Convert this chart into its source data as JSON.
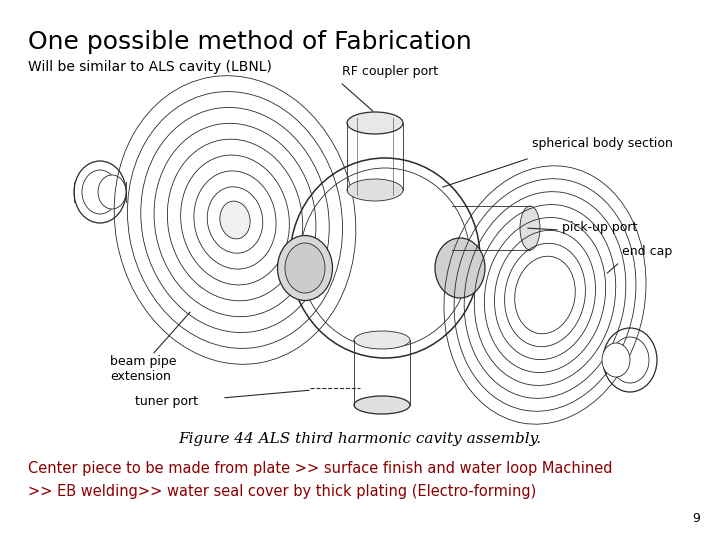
{
  "title": "One possible method of Fabrication",
  "subtitle": "Will be similar to ALS cavity (LBNL)",
  "figure_caption": "Figure 44 ALS third harmonic cavity assembly.",
  "body_text_line1": "Center piece to be made from plate >> surface finish and water loop Machined",
  "body_text_line2": ">> EB welding>> water seal cover by thick plating (Electro-forming)",
  "slide_number": "9",
  "bg_color": "#ffffff",
  "title_color": "#000000",
  "subtitle_color": "#000000",
  "caption_color": "#000000",
  "body_text_color": "#8b0000",
  "slide_number_color": "#000000",
  "title_fontsize": 18,
  "subtitle_fontsize": 10,
  "caption_fontsize": 11,
  "body_fontsize": 10.5,
  "slide_number_fontsize": 9,
  "diagram_labels": {
    "rf_coupler": "RF coupler port",
    "spherical": "spherical body section",
    "pickup": "pick-up port",
    "endcap": "end cap",
    "beampipe": "beam pipe\nextension",
    "tuner": "tuner port"
  }
}
